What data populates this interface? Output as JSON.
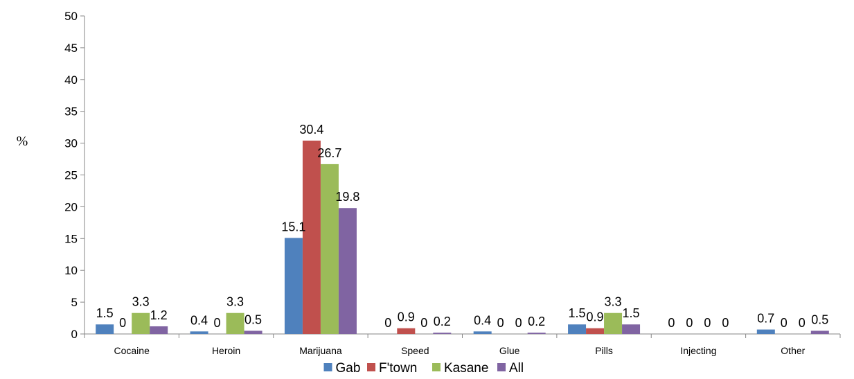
{
  "chart_data": {
    "type": "bar",
    "title": "",
    "xlabel": "",
    "ylabel": "%",
    "ylim": [
      0,
      50
    ],
    "yticks": [
      0,
      5,
      10,
      15,
      20,
      25,
      30,
      35,
      40,
      45,
      50
    ],
    "categories": [
      "Cocaine",
      "Heroin",
      "Marijuana",
      "Speed",
      "Glue",
      "Pills",
      "Injecting",
      "Other"
    ],
    "series": [
      {
        "name": "Gab",
        "color": "#4F81BD",
        "values": [
          1.5,
          0.4,
          15.1,
          0,
          0.4,
          1.5,
          0,
          0.7
        ]
      },
      {
        "name": "F'town",
        "color": "#C0504D",
        "values": [
          0,
          0,
          30.4,
          0.9,
          0,
          0.9,
          0,
          0
        ]
      },
      {
        "name": "Kasane",
        "color": "#9BBB59",
        "values": [
          3.3,
          3.3,
          26.7,
          0,
          0,
          3.3,
          0,
          0
        ]
      },
      {
        "name": "All",
        "color": "#8064A2",
        "values": [
          1.2,
          0.5,
          19.8,
          0.2,
          0.2,
          1.5,
          0,
          0.5
        ]
      }
    ],
    "grid": false,
    "legend": "bottom-center"
  }
}
